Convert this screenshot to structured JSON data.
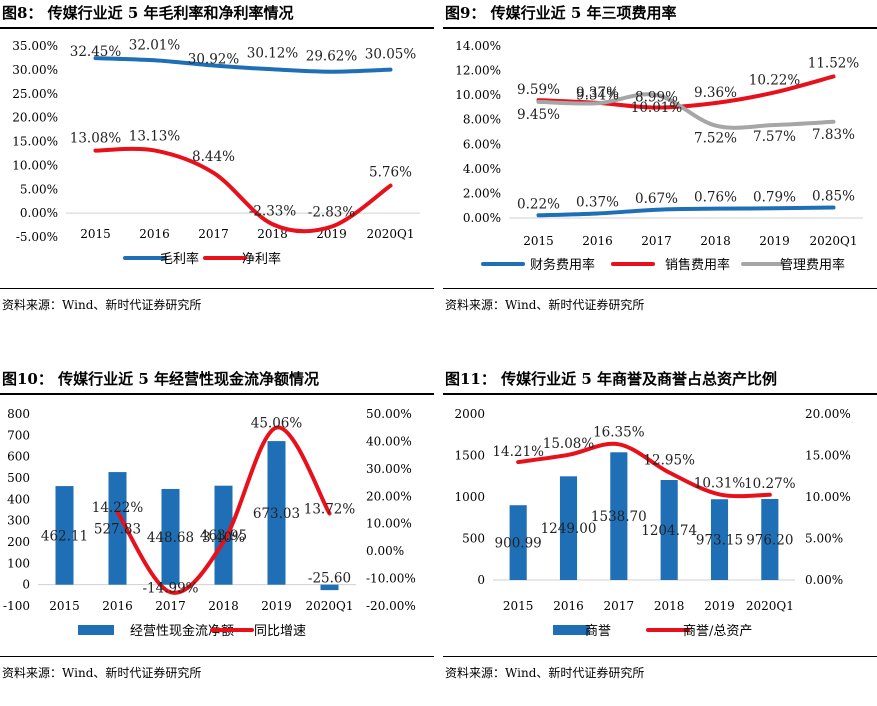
{
  "charts": [
    {
      "title": "图8： 传媒行业近 5 年毛利率和净利率情况",
      "source": "资料来源：Wind、新时代证券研究所",
      "chart_data": {
        "type": "line",
        "categories": [
          "2015",
          "2016",
          "2017",
          "2018",
          "2019",
          "2020Q1"
        ],
        "ylim": [
          -5,
          35
        ],
        "yticks": [
          "-5.00%",
          "0.00%",
          "5.00%",
          "10.00%",
          "15.00%",
          "20.00%",
          "25.00%",
          "30.00%",
          "35.00%"
        ],
        "series": [
          {
            "name": "毛利率",
            "color": "#1f6fb7",
            "values": [
              32.45,
              32.01,
              30.92,
              30.12,
              29.62,
              30.05
            ],
            "labels": [
              "32.45%",
              "32.01%",
              "30.92%",
              "30.12%",
              "29.62%",
              "30.05%"
            ]
          },
          {
            "name": "净利率",
            "color": "#e8101a",
            "values": [
              13.08,
              13.13,
              8.44,
              -2.33,
              -2.83,
              5.76
            ],
            "labels": [
              "13.08%",
              "13.13%",
              "8.44%",
              "-2.33%",
              "-2.83%",
              "5.76%"
            ]
          }
        ]
      }
    },
    {
      "title": "图9： 传媒行业近 5 年三项费用率",
      "source": "资料来源：Wind、新时代证券研究所",
      "chart_data": {
        "type": "line",
        "categories": [
          "2015",
          "2016",
          "2017",
          "2018",
          "2019",
          "2020Q1"
        ],
        "ylim": [
          0,
          14
        ],
        "yticks": [
          "0.00%",
          "2.00%",
          "4.00%",
          "6.00%",
          "8.00%",
          "10.00%",
          "12.00%",
          "14.00%"
        ],
        "series": [
          {
            "name": "财务费用率",
            "color": "#1f6fb7",
            "values": [
              0.22,
              0.37,
              0.67,
              0.76,
              0.79,
              0.85
            ],
            "labels": [
              "0.22%",
              "0.37%",
              "0.67%",
              "0.76%",
              "0.79%",
              "0.85%"
            ]
          },
          {
            "name": "销售费用率",
            "color": "#e8101a",
            "values": [
              9.59,
              9.37,
              8.99,
              9.36,
              10.22,
              11.52
            ],
            "labels": [
              "9.59%",
              "9.37%",
              "8.99%",
              "9.36%",
              "10.22%",
              "11.52%"
            ]
          },
          {
            "name": "管理费用率",
            "color": "#a6a6a6",
            "values": [
              9.45,
              9.34,
              10.01,
              7.52,
              7.57,
              7.83
            ],
            "labels": [
              "9.45%",
              "9.34%",
              "10.01%",
              "7.52%",
              "7.57%",
              "7.83%"
            ]
          }
        ]
      }
    },
    {
      "title": "图10： 传媒行业近 5 年经营性现金流净额情况",
      "source": "资料来源：Wind、新时代证券研究所",
      "chart_data": {
        "type": "bar",
        "categories": [
          "2015",
          "2016",
          "2017",
          "2018",
          "2019",
          "2020Q1"
        ],
        "ylim": [
          -100,
          800
        ],
        "y2lim": [
          -20,
          50
        ],
        "yticks": [
          "-100",
          "0",
          "100",
          "200",
          "300",
          "400",
          "500",
          "600",
          "700",
          "800"
        ],
        "y2ticks": [
          "-20.00%",
          "-10.00%",
          "0.00%",
          "10.00%",
          "20.00%",
          "30.00%",
          "40.00%",
          "50.00%"
        ],
        "series": [
          {
            "name": "经营性现金流净额",
            "color": "#1f6fb7",
            "values": [
              462.11,
              527.83,
              448.68,
              463.95,
              673.03,
              -25.6
            ],
            "labels": [
              "462.11",
              "527.83",
              "448.68",
              "463.95",
              "673.03",
              "-25.60"
            ]
          },
          {
            "name": "同比增速",
            "color": "#e8101a",
            "axis": "right",
            "values": [
              null,
              14.22,
              -14.99,
              3.4,
              45.06,
              13.72
            ],
            "labels": [
              "",
              "14.22%",
              "-14.99%",
              "3.40%",
              "45.06%",
              "13.72%"
            ]
          }
        ]
      }
    },
    {
      "title": "图11： 传媒行业近 5 年商誉及商誉占总资产比例",
      "source": "资料来源：Wind、新时代证券研究所",
      "chart_data": {
        "type": "bar",
        "categories": [
          "2015",
          "2016",
          "2017",
          "2018",
          "2019",
          "2020Q1"
        ],
        "ylim": [
          0,
          2000
        ],
        "y2lim": [
          0,
          20
        ],
        "yticks": [
          "0",
          "500",
          "1000",
          "1500",
          "2000"
        ],
        "y2ticks": [
          "0.00%",
          "5.00%",
          "10.00%",
          "15.00%",
          "20.00%"
        ],
        "series": [
          {
            "name": "商誉",
            "color": "#1f6fb7",
            "values": [
              900.99,
              1249.0,
              1538.7,
              1204.74,
              973.15,
              976.2
            ],
            "labels": [
              "900.99",
              "1249.00",
              "1538.70",
              "1204.74",
              "973.15",
              "976.20"
            ]
          },
          {
            "name": "商誉/总资产",
            "color": "#e8101a",
            "axis": "right",
            "values": [
              14.21,
              15.08,
              16.35,
              12.95,
              10.31,
              10.27
            ],
            "labels": [
              "14.21%",
              "15.08%",
              "16.35%",
              "12.95%",
              "10.31%",
              "10.27%"
            ]
          }
        ]
      }
    }
  ]
}
